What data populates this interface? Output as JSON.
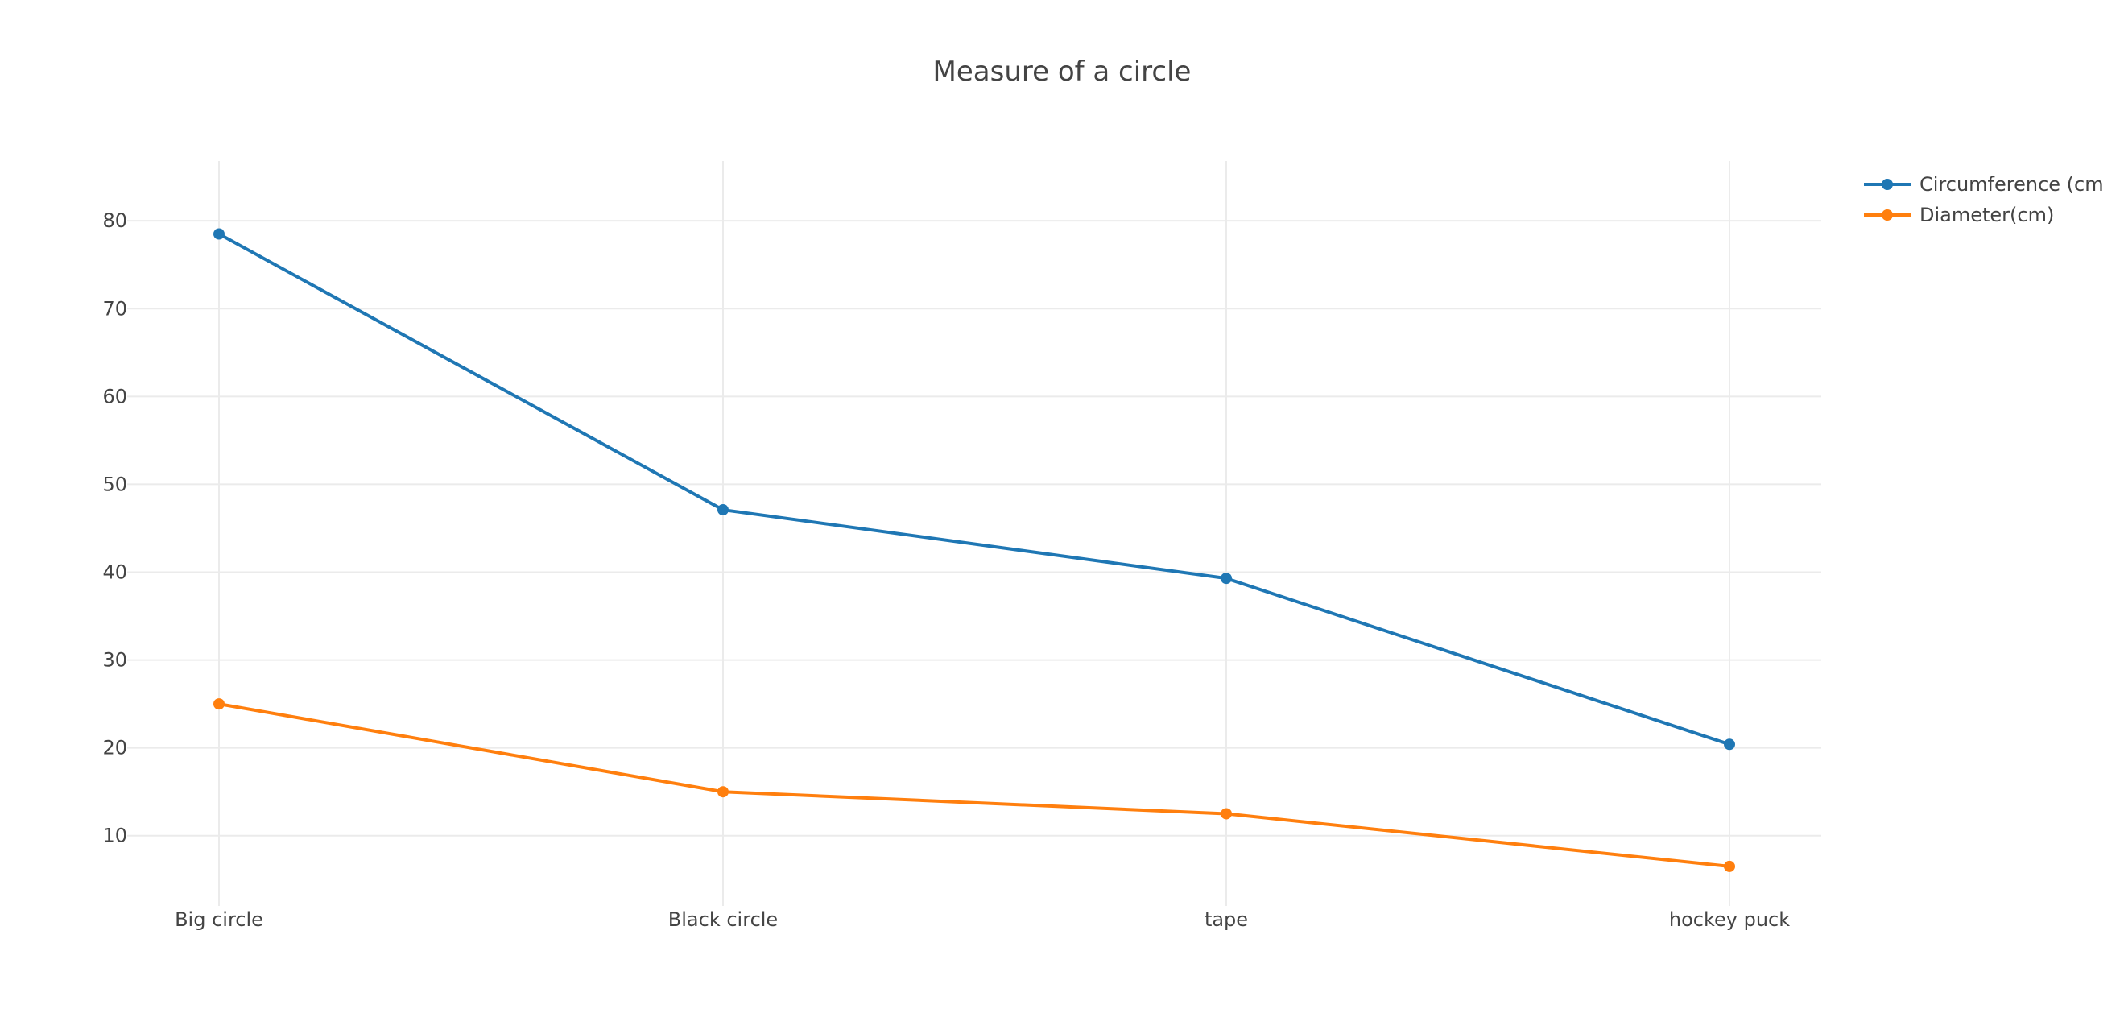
{
  "chart_data": {
    "type": "line",
    "title": "Measure of a circle",
    "xlabel": "",
    "ylabel": "",
    "categories": [
      "Big circle",
      "Black circle",
      "tape",
      "hockey puck"
    ],
    "y_ticks": [
      10,
      20,
      30,
      40,
      50,
      60,
      70,
      80
    ],
    "ylim": [
      2.0,
      86.8
    ],
    "grid": true,
    "legend_position": "top-right",
    "series": [
      {
        "name": "Circumference (cm",
        "color": "#1f77b4",
        "values": [
          78.5,
          47.1,
          39.3,
          20.4
        ]
      },
      {
        "name": "Diameter(cm)",
        "color": "#ff7f0e",
        "values": [
          25.0,
          15.0,
          12.5,
          6.5
        ]
      }
    ]
  }
}
